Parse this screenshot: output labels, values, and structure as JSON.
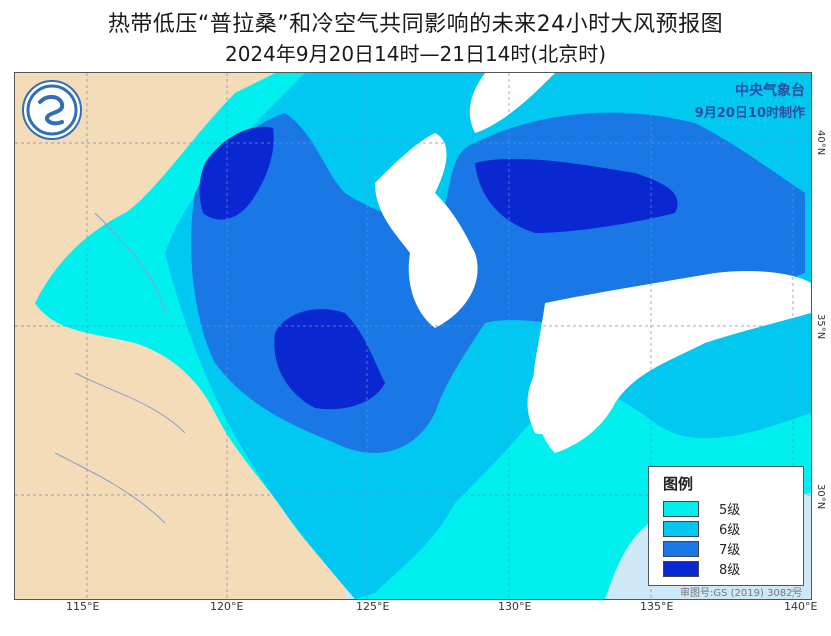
{
  "title": "热带低压“普拉桑”和冷空气共同影响的未来24小时大风预报图",
  "subtitle": "2024年9月20日14时—21日14时(北京时)",
  "agency": {
    "name": "中央气象台",
    "made": "9月20日10时制作"
  },
  "legend": {
    "title": "图例",
    "items": [
      {
        "label": "5级",
        "color": "#00f0f0"
      },
      {
        "label": "6级",
        "color": "#00c8f0"
      },
      {
        "label": "7级",
        "color": "#1a78e6"
      },
      {
        "label": "8级",
        "color": "#0a28d2"
      }
    ]
  },
  "colors": {
    "land": "#f5dcb8",
    "sea_light": "#cfe8f7",
    "unaffected_land": "#ffffff",
    "boundary": "#5a8fd0"
  },
  "axes": {
    "lon_labels": [
      "115°E",
      "120°E",
      "125°E",
      "130°E",
      "135°E",
      "140°E"
    ],
    "lat_labels": [
      "40°N",
      "35°N",
      "30°N"
    ]
  },
  "map_number": "审图号:GS (2019) 3082号"
}
